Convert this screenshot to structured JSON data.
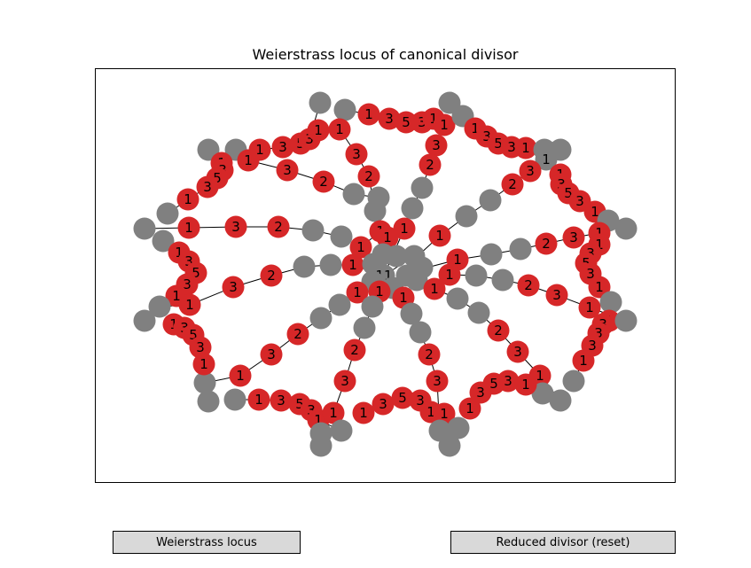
{
  "figure": {
    "title": "Weierstrass locus of canonical divisor"
  },
  "buttons": {
    "left_label": "Weierstrass locus",
    "right_label": "Reduced divisor (reset)"
  },
  "colors": {
    "red_node": "#d62728",
    "gray_node": "#808080",
    "edge": "#000000"
  },
  "graph": {
    "description_free": true,
    "node_labels_visible": [
      "1",
      "3",
      "5",
      "3",
      "1",
      "3",
      "2",
      "1",
      "3",
      "5",
      "3",
      "1",
      "2",
      "3",
      "1",
      "1",
      "1",
      "3",
      "5",
      "3",
      "1",
      "3",
      "2",
      "1",
      "1",
      "3",
      "2",
      "1",
      "3",
      "5",
      "3",
      "1",
      "3",
      "2",
      "1",
      "1",
      "3",
      "5",
      "3",
      "1",
      "1",
      "2",
      "3",
      "1",
      "3",
      "5",
      "3",
      "1",
      "2",
      "3",
      "1",
      "1",
      "3",
      "5",
      "3",
      "1",
      "1",
      "3",
      "2",
      "1",
      "1",
      "3",
      "5",
      "3",
      "1",
      "1",
      "2",
      "3",
      "1",
      "3",
      "5",
      "3",
      "1",
      "1",
      "1",
      "1",
      "1",
      "1"
    ]
  }
}
